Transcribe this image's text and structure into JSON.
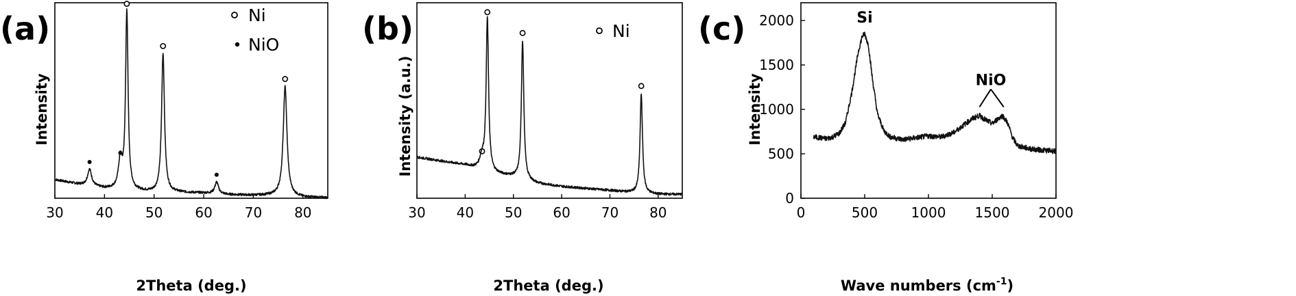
{
  "chart_data": [
    {
      "type": "line",
      "panel_label": "(a)",
      "xlabel": "2Theta (deg.)",
      "ylabel": "Intensity",
      "xlim": [
        30,
        85
      ],
      "ylim": [
        0,
        100
      ],
      "x_ticks": [
        30,
        40,
        50,
        60,
        70,
        80
      ],
      "y_ticks": [],
      "legend": {
        "placement": "top-right",
        "entries": [
          {
            "marker": "open-circle",
            "label": "Ni"
          },
          {
            "marker": "filled-dot",
            "label": "NiO"
          }
        ]
      },
      "baseline": [
        [
          30,
          9.5
        ],
        [
          35,
          7.0
        ],
        [
          40,
          5.0
        ],
        [
          45,
          4.0
        ],
        [
          50,
          3.0
        ],
        [
          55,
          3.0
        ],
        [
          60,
          2.6
        ],
        [
          65,
          1.8
        ],
        [
          70,
          1.5
        ],
        [
          75,
          1.4
        ],
        [
          80,
          0.5
        ],
        [
          85,
          0.2
        ]
      ],
      "peaks": [
        {
          "x": 37.0,
          "height": 8.5,
          "width": 0.5,
          "phase": "NiO"
        },
        {
          "x": 43.2,
          "height": 15.0,
          "width": 0.45,
          "phase": "NiO"
        },
        {
          "x": 44.5,
          "height": 91.5,
          "width": 0.3,
          "phase": "Ni"
        },
        {
          "x": 51.8,
          "height": 71.0,
          "width": 0.35,
          "phase": "Ni"
        },
        {
          "x": 62.6,
          "height": 6.0,
          "width": 0.45,
          "phase": "NiO"
        },
        {
          "x": 76.4,
          "height": 56.0,
          "width": 0.45,
          "phase": "Ni"
        }
      ]
    },
    {
      "type": "line",
      "panel_label": "(b)",
      "xlabel": "2Theta (deg.)",
      "ylabel": "Intensity (a.u.)",
      "xlim": [
        30,
        85
      ],
      "ylim": [
        0,
        100
      ],
      "x_ticks": [
        30,
        40,
        50,
        60,
        70,
        80
      ],
      "y_ticks": [],
      "legend": {
        "placement": "top-right",
        "entries": [
          {
            "marker": "open-circle",
            "label": "Ni"
          }
        ]
      },
      "baseline": [
        [
          30,
          21.0
        ],
        [
          35,
          19.0
        ],
        [
          40,
          17.0
        ],
        [
          45,
          13.0
        ],
        [
          50,
          11.0
        ],
        [
          55,
          7.5
        ],
        [
          60,
          6.0
        ],
        [
          65,
          5.0
        ],
        [
          70,
          4.0
        ],
        [
          75,
          2.8
        ],
        [
          80,
          2.0
        ],
        [
          85,
          2.0
        ]
      ],
      "peaks": [
        {
          "x": 44.6,
          "height": 78.0,
          "width": 0.3,
          "phase": "Ni"
        },
        {
          "x": 43.5,
          "height": 6.0,
          "width": 0.6,
          "phase": "Ni"
        },
        {
          "x": 51.9,
          "height": 71.0,
          "width": 0.3,
          "phase": "Ni"
        },
        {
          "x": 76.5,
          "height": 51.0,
          "width": 0.3,
          "phase": "Ni"
        }
      ]
    },
    {
      "type": "line",
      "panel_label": "(c)",
      "xlabel": "Wave numbers (cm",
      "xlabel_sup": "-1",
      "xlabel_end": ")",
      "ylabel": "Intensity",
      "xlim": [
        0,
        2000
      ],
      "ylim": [
        0,
        2200
      ],
      "x_ticks": [
        0,
        500,
        1000,
        1500,
        2000
      ],
      "y_ticks": [
        0,
        500,
        1000,
        1500,
        2000
      ],
      "annotations": [
        {
          "text": "Si",
          "x": 500,
          "y": 1900
        },
        {
          "text": "NiO",
          "x": 1500,
          "y": 980
        }
      ],
      "points": [
        [
          100,
          690
        ],
        [
          150,
          680
        ],
        [
          200,
          670
        ],
        [
          250,
          690
        ],
        [
          300,
          730
        ],
        [
          350,
          850
        ],
        [
          400,
          1200
        ],
        [
          450,
          1650
        ],
        [
          480,
          1820
        ],
        [
          500,
          1850
        ],
        [
          530,
          1720
        ],
        [
          560,
          1350
        ],
        [
          600,
          950
        ],
        [
          650,
          760
        ],
        [
          700,
          690
        ],
        [
          800,
          660
        ],
        [
          900,
          680
        ],
        [
          1000,
          700
        ],
        [
          1100,
          690
        ],
        [
          1200,
          740
        ],
        [
          1300,
          850
        ],
        [
          1350,
          900
        ],
        [
          1400,
          930
        ],
        [
          1450,
          880
        ],
        [
          1500,
          840
        ],
        [
          1550,
          900
        ],
        [
          1580,
          930
        ],
        [
          1620,
          850
        ],
        [
          1660,
          680
        ],
        [
          1700,
          590
        ],
        [
          1800,
          555
        ],
        [
          1900,
          540
        ],
        [
          2000,
          530
        ]
      ]
    }
  ]
}
